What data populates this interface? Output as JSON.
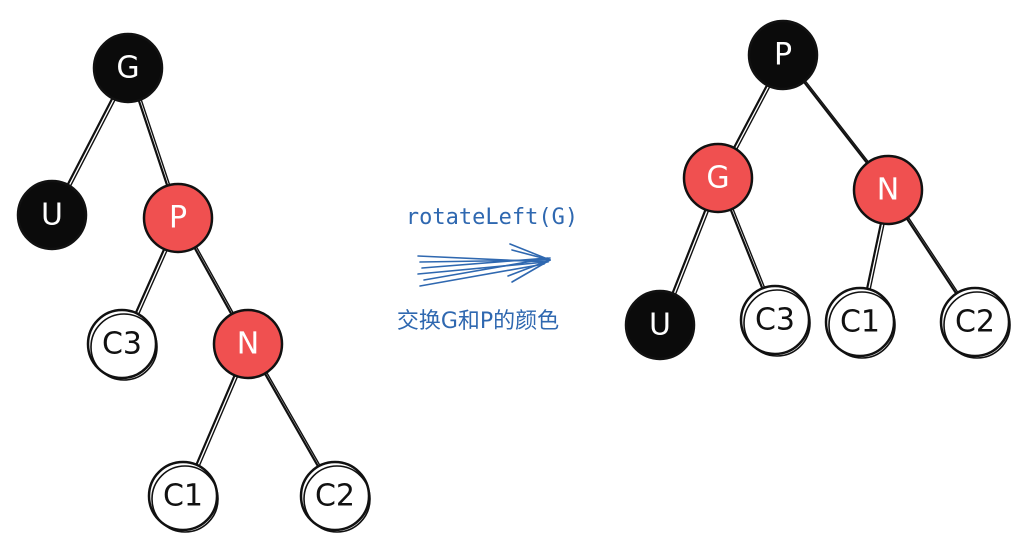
{
  "diagram": {
    "operation_label": "rotateLeft(G)",
    "swap_label": "交换G和P的颜色",
    "colors": {
      "black": "#0b0b0b",
      "red": "#f05050",
      "white": "#ffffff",
      "arrow": "#2f68b0"
    },
    "before": {
      "nodes": [
        {
          "id": "G",
          "label": "G",
          "color": "black"
        },
        {
          "id": "U",
          "label": "U",
          "color": "black"
        },
        {
          "id": "P",
          "label": "P",
          "color": "red"
        },
        {
          "id": "C3",
          "label": "C3",
          "color": "white"
        },
        {
          "id": "N",
          "label": "N",
          "color": "red"
        },
        {
          "id": "C1",
          "label": "C1",
          "color": "white"
        },
        {
          "id": "C2",
          "label": "C2",
          "color": "white"
        }
      ],
      "edges": [
        [
          "G",
          "U"
        ],
        [
          "G",
          "P"
        ],
        [
          "P",
          "C3"
        ],
        [
          "P",
          "N"
        ],
        [
          "N",
          "C1"
        ],
        [
          "N",
          "C2"
        ]
      ]
    },
    "after": {
      "nodes": [
        {
          "id": "P",
          "label": "P",
          "color": "black"
        },
        {
          "id": "G",
          "label": "G",
          "color": "red"
        },
        {
          "id": "N",
          "label": "N",
          "color": "red"
        },
        {
          "id": "U",
          "label": "U",
          "color": "black"
        },
        {
          "id": "C3",
          "label": "C3",
          "color": "white"
        },
        {
          "id": "C1",
          "label": "C1",
          "color": "white"
        },
        {
          "id": "C2",
          "label": "C2",
          "color": "white"
        }
      ],
      "edges": [
        [
          "P",
          "G"
        ],
        [
          "P",
          "N"
        ],
        [
          "G",
          "U"
        ],
        [
          "G",
          "C3"
        ],
        [
          "N",
          "C1"
        ],
        [
          "N",
          "C2"
        ]
      ]
    }
  }
}
